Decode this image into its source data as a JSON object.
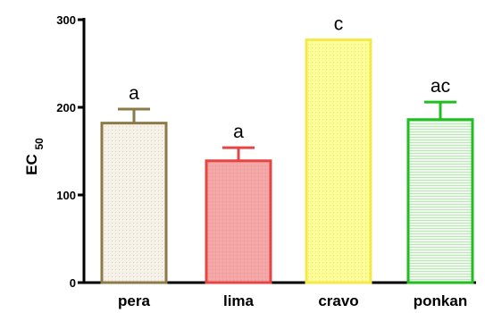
{
  "chart_data": {
    "type": "bar",
    "categories": [
      "pera",
      "lima",
      "cravo",
      "ponkan"
    ],
    "values": [
      182,
      139,
      277,
      186
    ],
    "error_upper": [
      198,
      154,
      277,
      206
    ],
    "significance_letters": [
      "a",
      "a",
      "c",
      "ac"
    ],
    "ylabel": "EC",
    "ylabel_subscript": "50",
    "ylim": [
      0,
      300
    ],
    "yticks": [
      "0",
      "100",
      "200",
      "300"
    ],
    "grid": false,
    "colors": {
      "pera": {
        "fill": "#f4f0e6",
        "stroke": "#8c7a48"
      },
      "lima": {
        "fill": "#f4a3a3",
        "stroke": "#e54545"
      },
      "cravo": {
        "fill": "#ffff9a",
        "stroke": "#f5e94a"
      },
      "ponkan": {
        "fill": "#e8f7e6",
        "stroke": "#1fbf1f"
      }
    }
  }
}
